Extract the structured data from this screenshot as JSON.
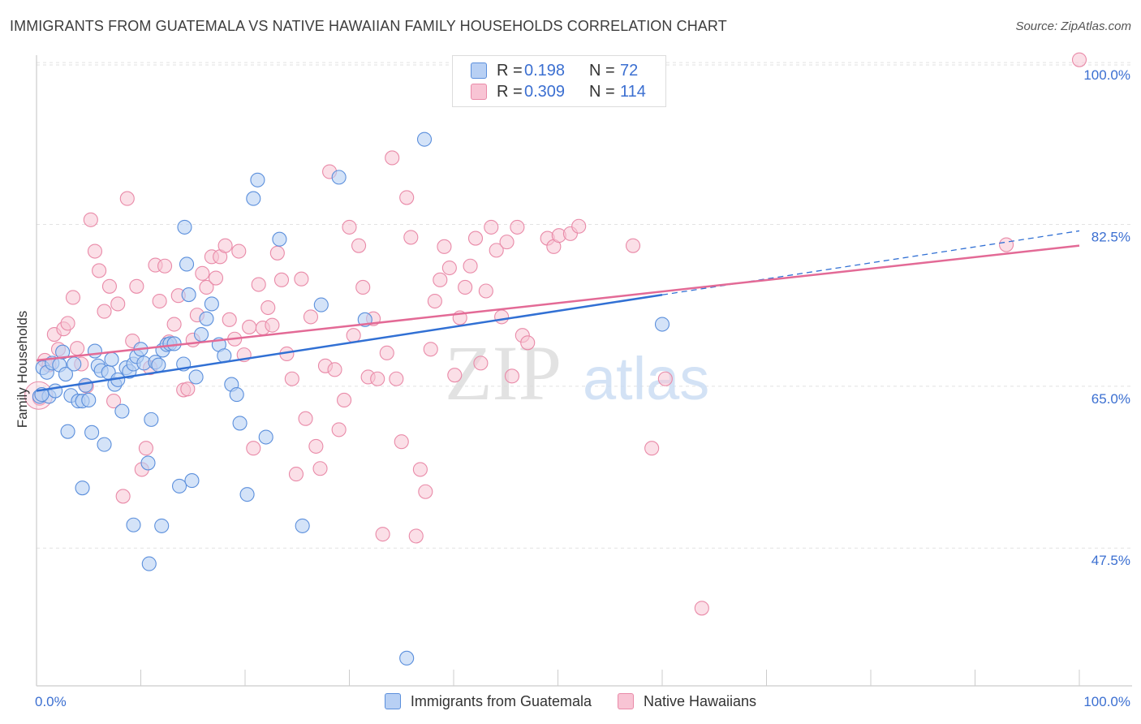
{
  "header": {
    "title": "IMMIGRANTS FROM GUATEMALA VS NATIVE HAWAIIAN FAMILY HOUSEHOLDS CORRELATION CHART",
    "source": "Source: ZipAtlas.com"
  },
  "watermark": {
    "zip": "ZIP",
    "atlas": "atlas"
  },
  "legend_top": {
    "rows": [
      {
        "r_label": "R =",
        "r_value": "0.198",
        "n_label": "N =",
        "n_value": "72"
      },
      {
        "r_label": "R =",
        "r_value": "0.309",
        "n_label": "N =",
        "n_value": "114"
      }
    ]
  },
  "legend_bottom": {
    "items": [
      {
        "label": "Immigrants from Guatemala"
      },
      {
        "label": "Native Hawaiians"
      }
    ]
  },
  "colors": {
    "blue_fill": "#b8d0f4",
    "blue_stroke": "#5b8fdc",
    "blue_line": "#3170d4",
    "pink_fill": "#f8c4d4",
    "pink_stroke": "#e98aa8",
    "pink_line": "#e36a96",
    "axis_text": "#3b6fd1",
    "grid": "#e2e2e2"
  },
  "chart_data": {
    "type": "scatter",
    "title": "IMMIGRANTS FROM GUATEMALA VS NATIVE HAWAIIAN FAMILY HOUSEHOLDS CORRELATION CHART",
    "xlabel": "",
    "ylabel": "Family Households",
    "xlim": [
      0,
      100
    ],
    "ylim": [
      32.6,
      101.5
    ],
    "x_tick_labels": [
      "0.0%",
      "100.0%"
    ],
    "y_ticks": [
      100.0,
      82.5,
      65.0,
      47.5
    ],
    "y_tick_labels": [
      "100.0%",
      "82.5%",
      "65.0%",
      "47.5%"
    ],
    "grid": true,
    "legend_position": "top-center",
    "series": [
      {
        "name": "Immigrants from Guatemala",
        "R": 0.198,
        "N": 72,
        "trend": {
          "x0": 0,
          "y0": 64.5,
          "x1": 100,
          "y1": 81.8,
          "solid_until": 60
        },
        "points": [
          [
            0.3,
            63.9
          ],
          [
            0.6,
            67.0
          ],
          [
            1.0,
            66.5
          ],
          [
            1.2,
            63.9
          ],
          [
            1.5,
            67.5
          ],
          [
            1.8,
            64.5
          ],
          [
            2.2,
            67.3
          ],
          [
            2.5,
            68.7
          ],
          [
            2.8,
            66.3
          ],
          [
            3.0,
            60.1
          ],
          [
            3.3,
            64.0
          ],
          [
            3.6,
            67.4
          ],
          [
            4.0,
            63.4
          ],
          [
            4.4,
            63.4
          ],
          [
            4.7,
            65.1
          ],
          [
            5.0,
            63.5
          ],
          [
            5.3,
            60.0
          ],
          [
            5.6,
            68.8
          ],
          [
            5.9,
            67.2
          ],
          [
            6.2,
            66.7
          ],
          [
            6.5,
            58.7
          ],
          [
            6.9,
            66.5
          ],
          [
            7.2,
            67.9
          ],
          [
            7.5,
            65.2
          ],
          [
            7.8,
            65.7
          ],
          [
            8.2,
            62.3
          ],
          [
            8.6,
            67.0
          ],
          [
            8.9,
            66.6
          ],
          [
            9.3,
            67.4
          ],
          [
            9.6,
            68.2
          ],
          [
            10.0,
            69.0
          ],
          [
            10.3,
            67.5
          ],
          [
            10.7,
            56.7
          ],
          [
            11.0,
            61.4
          ],
          [
            11.4,
            67.6
          ],
          [
            11.7,
            67.3
          ],
          [
            12.1,
            68.9
          ],
          [
            12.5,
            69.5
          ],
          [
            12.8,
            69.6
          ],
          [
            13.2,
            69.6
          ],
          [
            13.7,
            54.2
          ],
          [
            14.1,
            67.4
          ],
          [
            14.4,
            78.2
          ],
          [
            14.6,
            74.9
          ],
          [
            14.9,
            54.8
          ],
          [
            15.3,
            66.0
          ],
          [
            15.8,
            70.6
          ],
          [
            16.3,
            72.3
          ],
          [
            16.8,
            73.9
          ],
          [
            17.5,
            69.5
          ],
          [
            18.0,
            68.3
          ],
          [
            18.7,
            65.2
          ],
          [
            19.2,
            64.1
          ],
          [
            19.5,
            61.0
          ],
          [
            20.2,
            53.3
          ],
          [
            20.8,
            85.3
          ],
          [
            21.2,
            87.3
          ],
          [
            22.0,
            59.5
          ],
          [
            23.3,
            80.9
          ],
          [
            25.5,
            49.9
          ],
          [
            27.3,
            73.8
          ],
          [
            29.0,
            87.6
          ],
          [
            31.5,
            72.2
          ],
          [
            35.5,
            35.6
          ],
          [
            37.2,
            91.7
          ],
          [
            12.0,
            49.9
          ],
          [
            14.2,
            82.2
          ],
          [
            10.8,
            45.8
          ],
          [
            9.3,
            50.0
          ],
          [
            4.4,
            54.0
          ],
          [
            60.0,
            71.7
          ],
          [
            0.5,
            64.1
          ]
        ]
      },
      {
        "name": "Native Hawaiians",
        "R": 0.309,
        "N": 114,
        "trend": {
          "x0": 0,
          "y0": 67.8,
          "x1": 100,
          "y1": 80.2,
          "solid_until": 100
        },
        "points": [
          [
            0.3,
            63.7
          ],
          [
            0.8,
            67.8
          ],
          [
            1.2,
            67.3
          ],
          [
            1.7,
            70.6
          ],
          [
            2.1,
            69.0
          ],
          [
            2.6,
            71.2
          ],
          [
            3.0,
            71.8
          ],
          [
            3.5,
            74.6
          ],
          [
            3.9,
            69.1
          ],
          [
            4.3,
            67.4
          ],
          [
            4.8,
            65.0
          ],
          [
            5.2,
            83.0
          ],
          [
            5.6,
            79.6
          ],
          [
            6.0,
            77.5
          ],
          [
            6.5,
            73.1
          ],
          [
            7.0,
            75.8
          ],
          [
            7.4,
            63.4
          ],
          [
            7.8,
            73.9
          ],
          [
            8.3,
            53.1
          ],
          [
            8.7,
            85.3
          ],
          [
            9.2,
            69.9
          ],
          [
            9.6,
            75.8
          ],
          [
            10.1,
            56.0
          ],
          [
            10.5,
            58.3
          ],
          [
            10.9,
            67.0
          ],
          [
            11.4,
            78.1
          ],
          [
            11.8,
            74.2
          ],
          [
            12.3,
            78.0
          ],
          [
            12.7,
            69.8
          ],
          [
            13.2,
            71.7
          ],
          [
            13.6,
            74.8
          ],
          [
            14.1,
            64.6
          ],
          [
            14.5,
            64.7
          ],
          [
            15.0,
            70.0
          ],
          [
            15.4,
            72.7
          ],
          [
            15.9,
            77.2
          ],
          [
            16.3,
            75.7
          ],
          [
            16.8,
            79.0
          ],
          [
            17.2,
            76.7
          ],
          [
            17.6,
            79.0
          ],
          [
            18.1,
            80.2
          ],
          [
            18.5,
            72.2
          ],
          [
            19.0,
            70.1
          ],
          [
            19.4,
            79.6
          ],
          [
            19.9,
            68.4
          ],
          [
            20.4,
            71.4
          ],
          [
            20.8,
            58.3
          ],
          [
            21.3,
            76.0
          ],
          [
            21.7,
            71.3
          ],
          [
            22.2,
            73.5
          ],
          [
            22.6,
            71.6
          ],
          [
            23.1,
            79.4
          ],
          [
            23.5,
            76.5
          ],
          [
            24.0,
            68.5
          ],
          [
            24.5,
            65.8
          ],
          [
            24.9,
            55.5
          ],
          [
            25.4,
            76.6
          ],
          [
            25.8,
            61.5
          ],
          [
            26.3,
            72.5
          ],
          [
            26.8,
            58.5
          ],
          [
            27.2,
            56.1
          ],
          [
            27.7,
            67.2
          ],
          [
            28.1,
            88.2
          ],
          [
            28.6,
            66.8
          ],
          [
            29.0,
            60.3
          ],
          [
            29.5,
            63.5
          ],
          [
            30.0,
            82.2
          ],
          [
            30.4,
            70.5
          ],
          [
            30.9,
            80.2
          ],
          [
            31.3,
            75.7
          ],
          [
            31.8,
            66.0
          ],
          [
            32.3,
            72.3
          ],
          [
            32.7,
            65.8
          ],
          [
            33.2,
            49.0
          ],
          [
            33.6,
            68.6
          ],
          [
            34.1,
            89.7
          ],
          [
            34.5,
            65.8
          ],
          [
            35.0,
            59.0
          ],
          [
            35.5,
            85.4
          ],
          [
            35.9,
            81.1
          ],
          [
            36.4,
            48.8
          ],
          [
            36.8,
            56.0
          ],
          [
            37.3,
            53.6
          ],
          [
            37.8,
            69.0
          ],
          [
            38.2,
            74.2
          ],
          [
            38.7,
            76.5
          ],
          [
            39.1,
            80.1
          ],
          [
            39.6,
            77.8
          ],
          [
            40.1,
            66.2
          ],
          [
            40.6,
            72.4
          ],
          [
            41.1,
            75.7
          ],
          [
            41.6,
            78.0
          ],
          [
            42.1,
            81.0
          ],
          [
            42.6,
            67.5
          ],
          [
            43.1,
            75.3
          ],
          [
            43.6,
            82.2
          ],
          [
            44.1,
            79.7
          ],
          [
            44.6,
            72.5
          ],
          [
            45.1,
            80.6
          ],
          [
            45.6,
            66.1
          ],
          [
            46.1,
            82.2
          ],
          [
            46.6,
            70.5
          ],
          [
            47.1,
            69.7
          ],
          [
            49.0,
            81.0
          ],
          [
            49.6,
            80.1
          ],
          [
            50.1,
            81.3
          ],
          [
            51.2,
            81.5
          ],
          [
            52.0,
            82.3
          ],
          [
            57.2,
            80.2
          ],
          [
            59.0,
            58.3
          ],
          [
            63.8,
            41.0
          ],
          [
            100.0,
            100.3
          ],
          [
            93.0,
            80.3
          ],
          [
            60.3,
            65.8
          ]
        ]
      }
    ]
  }
}
